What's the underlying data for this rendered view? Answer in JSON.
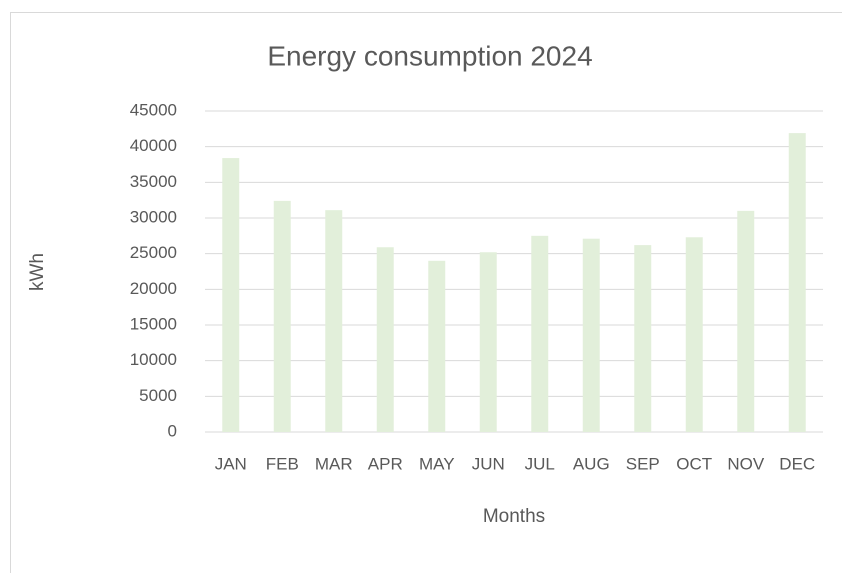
{
  "chart_data": {
    "type": "bar",
    "title": "Energy consumption 2024",
    "x_label": "Months",
    "y_label": "kWh",
    "categories": [
      "JAN",
      "FEB",
      "MAR",
      "APR",
      "MAY",
      "JUN",
      "JUL",
      "AUG",
      "SEP",
      "OCT",
      "NOV",
      "DEC"
    ],
    "values": [
      38400,
      32400,
      31100,
      25900,
      24000,
      25200,
      27500,
      27100,
      26200,
      27300,
      31000,
      41900
    ],
    "color": "#e2efda",
    "ylim": [
      0,
      45000
    ],
    "yticks": [
      0,
      5000,
      10000,
      15000,
      20000,
      25000,
      30000,
      35000,
      40000,
      45000
    ],
    "grid": true
  }
}
